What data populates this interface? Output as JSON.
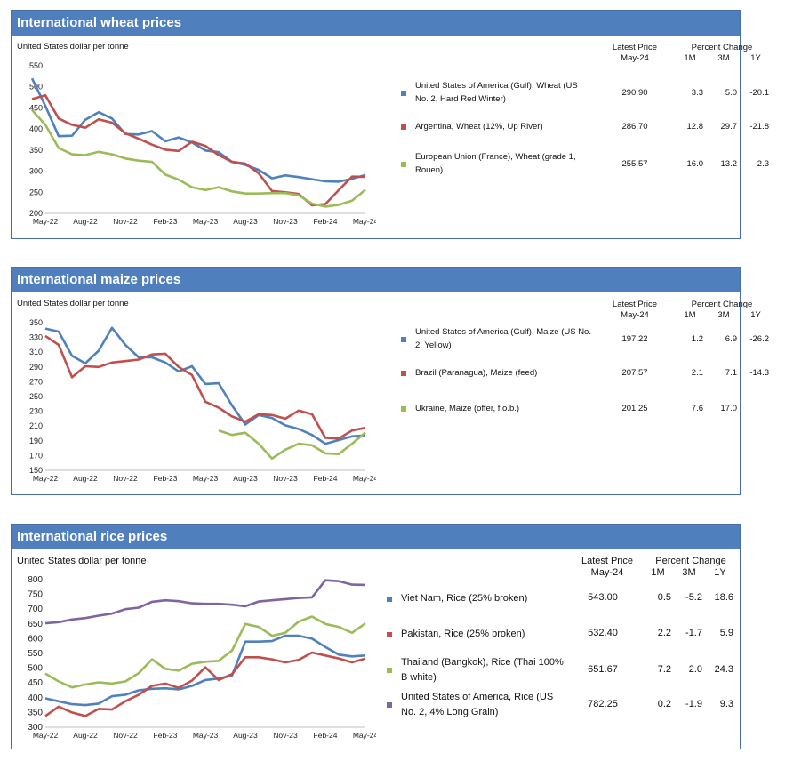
{
  "panels": [
    {
      "id": "wheat",
      "title": "International wheat prices",
      "unit": "United States dollar per tonne",
      "latest_header_1": "Latest Price",
      "latest_header_2": "May-24",
      "pct_header": "Percent Change",
      "pct_1m": "1M",
      "pct_3m": "3M",
      "pct_1y": "1Y",
      "series_table": [
        {
          "name": "United States of America (Gulf), Wheat (US No. 2, Hard Red Winter)",
          "latest": "290.90",
          "m1": "3.3",
          "m3": "5.0",
          "y1": "-20.1",
          "color": "#4f81bd"
        },
        {
          "name": "Argentina, Wheat (12%, Up River)",
          "latest": "286.70",
          "m1": "12.8",
          "m3": "29.7",
          "y1": "-21.8",
          "color": "#c0504d"
        },
        {
          "name": "European Union (France), Wheat (grade 1, Rouen)",
          "latest": "255.57",
          "m1": "16.0",
          "m3": "13.2",
          "y1": "-2.3",
          "color": "#9bbb59"
        }
      ]
    },
    {
      "id": "maize",
      "title": "International maize prices",
      "unit": "United States dollar per tonne",
      "latest_header_1": "Latest Price",
      "latest_header_2": "May-24",
      "pct_header": "Percent Change",
      "pct_1m": "1M",
      "pct_3m": "3M",
      "pct_1y": "1Y",
      "series_table": [
        {
          "name": "United States of America (Gulf), Maize (US No. 2, Yellow)",
          "latest": "197.22",
          "m1": "1.2",
          "m3": "6.9",
          "y1": "-26.2",
          "color": "#4f81bd"
        },
        {
          "name": "Brazil (Paranagua), Maize (feed)",
          "latest": "207.57",
          "m1": "2.1",
          "m3": "7.1",
          "y1": "-14.3",
          "color": "#c0504d"
        },
        {
          "name": "Ukraine, Maize (offer, f.o.b.)",
          "latest": "201.25",
          "m1": "7.6",
          "m3": "17.0",
          "y1": "",
          "color": "#9bbb59"
        }
      ]
    },
    {
      "id": "rice",
      "title": "International rice prices",
      "unit": "United States dollar per tonne",
      "latest_header_1": "Latest Price",
      "latest_header_2": "May-24",
      "pct_header": "Percent Change",
      "pct_1m": "1M",
      "pct_3m": "3M",
      "pct_1y": "1Y",
      "series_table": [
        {
          "name": "Viet Nam, Rice (25% broken)",
          "latest": "543.00",
          "m1": "0.5",
          "m3": "-5.2",
          "y1": "18.6",
          "color": "#4f81bd"
        },
        {
          "name": "Pakistan, Rice (25% broken)",
          "latest": "532.40",
          "m1": "2.2",
          "m3": "-1.7",
          "y1": "5.9",
          "color": "#c0504d"
        },
        {
          "name": "Thailand (Bangkok), Rice (Thai 100% B white)",
          "latest": "651.67",
          "m1": "7.2",
          "m3": "2.0",
          "y1": "24.3",
          "color": "#9bbb59"
        },
        {
          "name": "United States of America, Rice (US No. 2, 4% Long Grain)",
          "latest": "782.25",
          "m1": "0.2",
          "m3": "-1.9",
          "y1": "9.3",
          "color": "#8064a2"
        }
      ]
    }
  ],
  "chart_data": [
    {
      "type": "line",
      "title": "International wheat prices",
      "ylabel": "United States dollar per tonne",
      "x_tick_labels": [
        "May-22",
        "Aug-22",
        "Nov-22",
        "Feb-23",
        "May-23",
        "Aug-23",
        "Nov-23",
        "Feb-24",
        "May-24"
      ],
      "y_ticks": [
        200,
        250,
        300,
        350,
        400,
        450,
        500,
        550
      ],
      "ylim": [
        200,
        550
      ],
      "series": [
        {
          "name": "United States of America (Gulf), Wheat (US No. 2, Hard Red Winter)",
          "color": "#4f81bd",
          "values": [
            520,
            455,
            383,
            384,
            422,
            440,
            425,
            388,
            387,
            395,
            371,
            380,
            368,
            349,
            345,
            322,
            315,
            303,
            283,
            290,
            286,
            281,
            276,
            275,
            282,
            290.9
          ]
        },
        {
          "name": "Argentina, Wheat (12%, Up River)",
          "color": "#c0504d",
          "values": [
            471,
            480,
            425,
            410,
            403,
            423,
            415,
            390,
            377,
            363,
            351,
            348,
            370,
            360,
            338,
            322,
            318,
            295,
            253,
            250,
            246,
            219,
            222,
            255,
            287,
            286.7
          ]
        },
        {
          "name": "European Union (France), Wheat (grade 1, Rouen)",
          "color": "#9bbb59",
          "values": [
            445,
            410,
            355,
            340,
            338,
            346,
            340,
            330,
            325,
            322,
            292,
            280,
            262,
            255,
            262,
            252,
            247,
            247,
            248,
            248,
            243,
            223,
            216,
            220,
            230,
            255.57
          ]
        }
      ]
    },
    {
      "type": "line",
      "title": "International maize prices",
      "ylabel": "United States dollar per tonne",
      "x_tick_labels": [
        "May-22",
        "Aug-22",
        "Nov-22",
        "Feb-23",
        "May-23",
        "Aug-23",
        "Nov-23",
        "Feb-24",
        "May-24"
      ],
      "y_ticks": [
        150,
        170,
        190,
        210,
        230,
        250,
        270,
        290,
        310,
        330,
        350
      ],
      "ylim": [
        150,
        350
      ],
      "series": [
        {
          "name": "United States of America (Gulf), Maize (US No. 2, Yellow)",
          "color": "#4f81bd",
          "values": [
            342,
            338,
            305,
            295,
            312,
            343,
            320,
            303,
            303,
            296,
            284,
            291,
            267,
            268,
            238,
            212,
            225,
            221,
            211,
            206,
            198,
            186,
            191,
            196,
            197.22
          ]
        },
        {
          "name": "Brazil (Paranagua), Maize (feed)",
          "color": "#c0504d",
          "values": [
            332,
            320,
            276,
            291,
            290,
            296,
            298,
            300,
            307,
            308,
            290,
            279,
            243,
            235,
            223,
            216,
            226,
            225,
            220,
            231,
            226,
            194,
            193,
            204,
            207.57
          ]
        },
        {
          "name": "Ukraine, Maize (offer, f.o.b.)",
          "color": "#9bbb59",
          "values": [
            null,
            null,
            null,
            null,
            null,
            null,
            null,
            null,
            null,
            null,
            null,
            null,
            204,
            198,
            201,
            186,
            166,
            178,
            186,
            184,
            173,
            172,
            186,
            201.25
          ]
        }
      ]
    },
    {
      "type": "line",
      "title": "International rice prices",
      "ylabel": "United States dollar per tonne",
      "x_tick_labels": [
        "May-22",
        "Aug-22",
        "Nov-22",
        "Feb-23",
        "May-23",
        "Aug-23",
        "Nov-23",
        "Feb-24",
        "May-24"
      ],
      "y_ticks": [
        300,
        350,
        400,
        450,
        500,
        550,
        600,
        650,
        700,
        750,
        800
      ],
      "ylim": [
        300,
        800
      ],
      "series": [
        {
          "name": "Viet Nam, Rice (25% broken)",
          "color": "#4f81bd",
          "values": [
            398,
            388,
            378,
            375,
            380,
            405,
            410,
            425,
            430,
            432,
            428,
            440,
            460,
            465,
            475,
            590,
            590,
            592,
            610,
            610,
            600,
            572,
            546,
            540,
            543
          ]
        },
        {
          "name": "Pakistan, Rice (25% broken)",
          "color": "#c0504d",
          "values": [
            338,
            370,
            350,
            338,
            362,
            360,
            388,
            410,
            440,
            448,
            433,
            458,
            503,
            460,
            480,
            537,
            537,
            530,
            520,
            528,
            553,
            543,
            533,
            520,
            532.4
          ]
        },
        {
          "name": "Thailand (Bangkok), Rice (Thai 100% B white)",
          "color": "#9bbb59",
          "values": [
            482,
            455,
            435,
            445,
            452,
            448,
            455,
            483,
            530,
            498,
            492,
            515,
            522,
            525,
            560,
            650,
            640,
            610,
            620,
            658,
            675,
            650,
            640,
            620,
            651.67
          ]
        },
        {
          "name": "United States of America, Rice (US No. 2, 4% Long Grain)",
          "color": "#8064a2",
          "values": [
            652,
            656,
            665,
            670,
            678,
            685,
            700,
            705,
            725,
            730,
            727,
            720,
            718,
            718,
            715,
            710,
            726,
            730,
            734,
            738,
            740,
            798,
            795,
            783,
            782.25
          ]
        }
      ]
    }
  ]
}
